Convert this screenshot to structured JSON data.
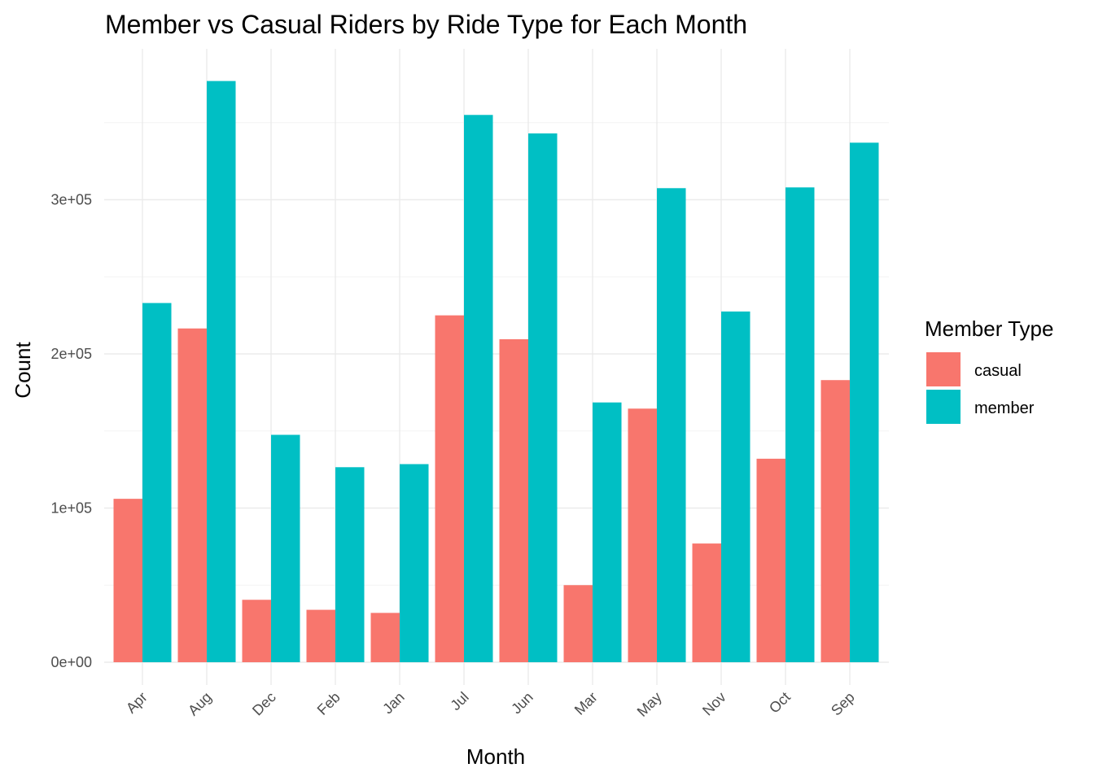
{
  "chart_data": {
    "type": "bar",
    "title": "Member vs Casual Riders by Ride Type for Each Month",
    "xlabel": "Month",
    "ylabel": "Count",
    "categories": [
      "Apr",
      "Aug",
      "Dec",
      "Feb",
      "Jan",
      "Jul",
      "Jun",
      "Mar",
      "May",
      "Nov",
      "Oct",
      "Sep"
    ],
    "series": [
      {
        "name": "casual",
        "color": "#F8766D",
        "values": [
          106000,
          216500,
          40500,
          34000,
          32000,
          225000,
          209500,
          50000,
          164500,
          77000,
          132000,
          183000
        ]
      },
      {
        "name": "member",
        "color": "#00BFC4",
        "values": [
          233000,
          377000,
          147500,
          126500,
          128500,
          355000,
          343000,
          168500,
          307500,
          227500,
          308000,
          337000
        ]
      }
    ],
    "ylim": [
      0,
      400000
    ],
    "yticks": [
      0,
      100000,
      200000,
      300000
    ],
    "ytick_labels": [
      "0e+00",
      "1e+05",
      "2e+05",
      "3e+05"
    ],
    "grid": true,
    "legend": {
      "title": "Member Type",
      "position": "right"
    }
  }
}
